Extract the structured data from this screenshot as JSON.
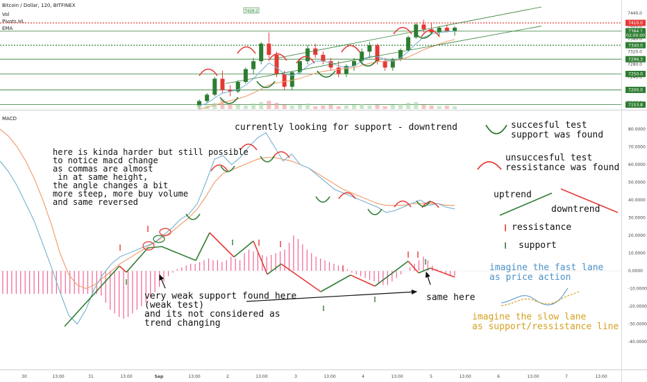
{
  "header": {
    "symbol_line": "Bitcoin / Dollar, 120, BITFINEX",
    "indicators": [
      "Vol",
      "Pivots HL",
      "EMA"
    ],
    "macd_label": "MACD",
    "high_label": "7428.2"
  },
  "price_axis": {
    "ticks": [
      "7440.0",
      "7400.0",
      "7360.0",
      "7320.0",
      "7280.0",
      "7240.0",
      "7200.0",
      "7160.0"
    ],
    "badges": [
      {
        "text": "7410.0",
        "color": "#e53935"
      },
      {
        "text": "7384.1",
        "color": "#2e7d32"
      },
      {
        "text": "02:00:00",
        "color": "#2e7d32"
      },
      {
        "text": "7340.0",
        "color": "#2e7d32"
      },
      {
        "text": "7296.3",
        "color": "#2e7d32"
      },
      {
        "text": "7250.0",
        "color": "#2e7d32"
      },
      {
        "text": "7200.0",
        "color": "#2e7d32"
      },
      {
        "text": "7153.8",
        "color": "#2e7d32"
      }
    ]
  },
  "macd_axis": {
    "ticks": [
      "80.0000",
      "70.0000",
      "60.0000",
      "50.0000",
      "40.0000",
      "30.0000",
      "20.0000",
      "10.0000",
      "0.0000",
      "-10.0000",
      "-20.0000",
      "-30.0000",
      "-40.0000"
    ]
  },
  "time_axis": {
    "labels": [
      "30",
      "13:00",
      "31",
      "13:00",
      "Sep",
      "13:00",
      "2",
      "13:00",
      "3",
      "13:00",
      "4",
      "13:00",
      "5",
      "13:00",
      "6",
      "13:00",
      "7",
      "13:00"
    ]
  },
  "annotations": {
    "top_note": "currently looking for support - downtrend",
    "left_note": "here is kinda harder but still possible\nto notice macd change\nas commas are almost\n in at same height,\nthe angle changes a bit\nmore steep, more buy volume\nand same reversed",
    "weak_note": "very weak support found here\n(weak test)\nand its not considered as\ntrend changing",
    "same_here": "same here"
  },
  "legend": {
    "support_test": "succesful test\nsupport was found",
    "resistance_test": "unsuccesful test\nressistance was found",
    "uptrend": "uptrend",
    "downtrend": "downtrend",
    "resistance": "ressistance",
    "support": "support",
    "fast_lane": "imagine the fast lane\nas price action",
    "slow_lane": "imagine the slow lane\nas support/ressistance line"
  },
  "colors": {
    "green": "#2e7d32",
    "red": "#e53935",
    "fast": "#7fb5d5",
    "slow": "#f0a070",
    "hist": "#f06292",
    "legend_fast": "#4a90c8",
    "legend_slow": "#d4a020"
  },
  "chart_data": [
    {
      "type": "candlestick",
      "title": "Bitcoin / Dollar, 120, BITFINEX",
      "ylim": [
        7140,
        7460
      ],
      "pivot_levels": [
        7410,
        7384.1,
        7340,
        7296.3,
        7250,
        7200,
        7153.8
      ],
      "candles_ohlc": [
        [
          7150,
          7170,
          7140,
          7165
        ],
        [
          7165,
          7190,
          7160,
          7185
        ],
        [
          7185,
          7240,
          7180,
          7235
        ],
        [
          7235,
          7260,
          7190,
          7200
        ],
        [
          7200,
          7215,
          7180,
          7195
        ],
        [
          7195,
          7230,
          7190,
          7225
        ],
        [
          7225,
          7270,
          7220,
          7265
        ],
        [
          7265,
          7300,
          7250,
          7290
        ],
        [
          7290,
          7350,
          7280,
          7345
        ],
        [
          7345,
          7380,
          7300,
          7310
        ],
        [
          7310,
          7320,
          7240,
          7250
        ],
        [
          7250,
          7260,
          7200,
          7210
        ],
        [
          7210,
          7260,
          7200,
          7255
        ],
        [
          7255,
          7300,
          7250,
          7290
        ],
        [
          7290,
          7340,
          7280,
          7330
        ],
        [
          7330,
          7345,
          7300,
          7310
        ],
        [
          7310,
          7320,
          7280,
          7290
        ],
        [
          7290,
          7300,
          7260,
          7270
        ],
        [
          7270,
          7290,
          7240,
          7250
        ],
        [
          7250,
          7280,
          7240,
          7275
        ],
        [
          7275,
          7300,
          7260,
          7290
        ],
        [
          7290,
          7330,
          7280,
          7320
        ],
        [
          7320,
          7350,
          7300,
          7340
        ],
        [
          7340,
          7345,
          7280,
          7290
        ],
        [
          7290,
          7300,
          7260,
          7270
        ],
        [
          7270,
          7300,
          7260,
          7295
        ],
        [
          7295,
          7330,
          7290,
          7325
        ],
        [
          7325,
          7370,
          7320,
          7365
        ],
        [
          7365,
          7410,
          7360,
          7405
        ],
        [
          7405,
          7420,
          7380,
          7390
        ],
        [
          7390,
          7410,
          7375,
          7380
        ],
        [
          7380,
          7400,
          7370,
          7395
        ],
        [
          7395,
          7405,
          7380,
          7385
        ],
        [
          7385,
          7400,
          7370,
          7395
        ]
      ],
      "volume": [
        6,
        5,
        9,
        14,
        7,
        6,
        5,
        8,
        10,
        12,
        9,
        6,
        5,
        6,
        8,
        4,
        5,
        6,
        4,
        5,
        6,
        7,
        5,
        6,
        4,
        6,
        7,
        9,
        10,
        6,
        5,
        4,
        5,
        4
      ],
      "fast_ma": [
        7150,
        7158,
        7175,
        7190,
        7195,
        7200,
        7215,
        7235,
        7260,
        7285,
        7270,
        7250,
        7245,
        7255,
        7275,
        7290,
        7290,
        7285,
        7275,
        7270,
        7275,
        7290,
        7305,
        7305,
        7295,
        7290,
        7300,
        7320,
        7345,
        7365,
        7375,
        7380,
        7382,
        7384
      ],
      "slow_ma": [
        7140,
        7145,
        7152,
        7160,
        7166,
        7172,
        7180,
        7190,
        7203,
        7216,
        7222,
        7226,
        7230,
        7236,
        7244,
        7252,
        7258,
        7262,
        7265,
        7267,
        7270,
        7276,
        7283,
        7288,
        7290,
        7291,
        7295,
        7303,
        7314,
        7326,
        7335,
        7344,
        7352,
        7358
      ],
      "trendline_upper": [
        [
          7300,
          7460
        ]
      ],
      "trendline_lower": [
        [
          7220,
          7400
        ]
      ]
    },
    {
      "type": "line",
      "title": "MACD",
      "ylim": [
        -45,
        85
      ],
      "series": [
        {
          "values": [
            62,
            56,
            48,
            38,
            28,
            15,
            2,
            -12,
            -25,
            -30,
            -22,
            -10,
            -2,
            4,
            8,
            10,
            12,
            14,
            16,
            20,
            24,
            29,
            32,
            38,
            50,
            63,
            65,
            60,
            64,
            70,
            75,
            78,
            70,
            62,
            66,
            60,
            58,
            54,
            50,
            46,
            44,
            42,
            40,
            38,
            36,
            33,
            34,
            36,
            38,
            40,
            37,
            38,
            36,
            35
          ]
        },
        {
          "values": [
            80,
            76,
            70,
            62,
            52,
            40,
            26,
            10,
            -2,
            -8,
            -10,
            -8,
            -4,
            0,
            4,
            7,
            10,
            13,
            16,
            19,
            22,
            26,
            30,
            35,
            42,
            50,
            55,
            57,
            59,
            61,
            63,
            64,
            64,
            63,
            62,
            60,
            58,
            55,
            52,
            49,
            46,
            44,
            42,
            40,
            38,
            37,
            37,
            37,
            38,
            38,
            38,
            38,
            37,
            37
          ]
        }
      ],
      "histogram": [
        -13,
        -13,
        -13,
        -13,
        -13,
        -13,
        -13,
        -13,
        -13,
        -13,
        -13,
        -13,
        -13,
        -13,
        -13,
        -13,
        -13,
        -13,
        -13,
        -13,
        -13,
        -13,
        -14,
        -18,
        -22,
        -24,
        -26,
        -27,
        -26,
        -24,
        -22,
        -20,
        -18,
        -15,
        -12,
        -9,
        -6,
        -3,
        -1,
        1,
        2,
        3,
        4,
        4,
        5,
        6,
        7,
        6,
        6,
        5,
        6,
        8,
        7,
        6,
        10,
        12,
        11,
        10,
        9,
        8,
        9,
        10,
        11,
        12,
        16,
        20,
        18,
        15,
        12,
        10,
        8,
        7,
        6,
        5,
        4,
        3,
        2,
        1,
        -1,
        -2,
        -3,
        -4,
        -5,
        -6,
        -7,
        -8,
        -8,
        -6,
        -4,
        -2,
        0,
        2,
        4,
        6,
        8,
        6,
        3,
        1,
        -1,
        -2,
        -3,
        -3
      ]
    }
  ]
}
